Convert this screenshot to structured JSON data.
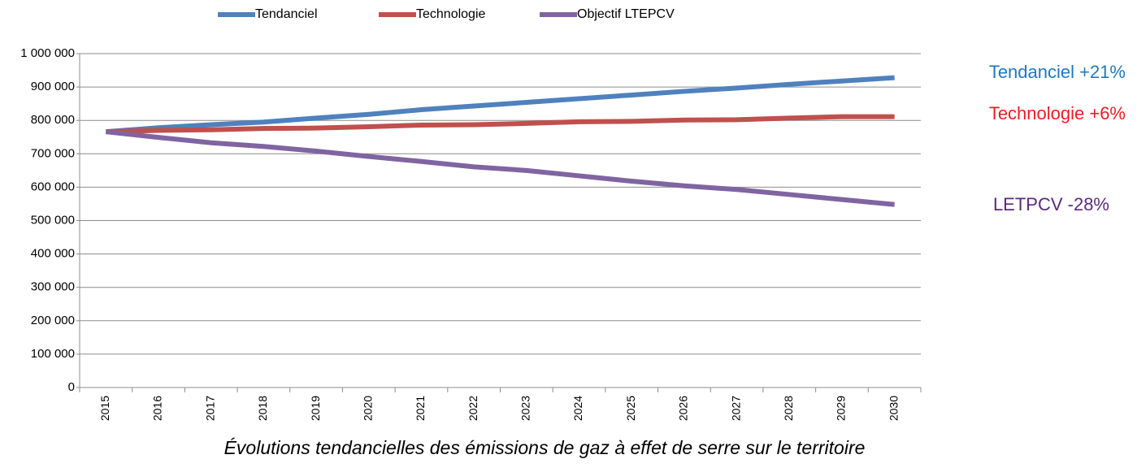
{
  "chart_data": {
    "type": "line",
    "title": "Évolutions tendancielles des émissions de gaz à effet de serre sur le territoire",
    "categories": [
      "2015",
      "2016",
      "2017",
      "2018",
      "2019",
      "2020",
      "2021",
      "2022",
      "2023",
      "2024",
      "2025",
      "2026",
      "2027",
      "2028",
      "2029",
      "2030"
    ],
    "series": [
      {
        "name": "Tendanciel",
        "color": "#4f81bd",
        "values": [
          766000,
          778000,
          787000,
          795000,
          807000,
          818000,
          832000,
          843000,
          854000,
          865000,
          876000,
          887000,
          897000,
          908000,
          918000,
          928000
        ]
      },
      {
        "name": "Technologie",
        "color": "#c0504d",
        "values": [
          766000,
          770000,
          772000,
          776000,
          777000,
          781000,
          786000,
          787000,
          791000,
          796000,
          797000,
          801000,
          802000,
          807000,
          811000,
          811000
        ]
      },
      {
        "name": "Objectif LTEPCV",
        "color": "#8064a2",
        "values": [
          766000,
          749000,
          733000,
          722000,
          708000,
          692000,
          677000,
          661000,
          650000,
          634000,
          618000,
          604000,
          593000,
          578000,
          563000,
          548000
        ]
      }
    ],
    "ylim": [
      0,
      1000000
    ],
    "yticks": [
      0,
      {
        "value": 100000,
        "label": "100 000"
      },
      {
        "value": 200000,
        "label": "200 000"
      },
      {
        "value": 300000,
        "label": "300 000"
      },
      {
        "value": 400000,
        "label": "400 000"
      },
      {
        "value": 500000,
        "label": "500 000"
      },
      {
        "value": 600000,
        "label": "600 000"
      },
      {
        "value": 700000,
        "label": "700 000"
      },
      {
        "value": 800000,
        "label": "800 000"
      },
      {
        "value": 900000,
        "label": "900 000"
      },
      {
        "value": 1000000,
        "label": "1 000 000"
      }
    ],
    "grid": true,
    "legend": "top",
    "annotations": [
      {
        "text": "Tendanciel +21%",
        "color": "#1f78c1"
      },
      {
        "text": "Technologie +6%",
        "color": "#ee1c25"
      },
      {
        "text": "LETPCV -28%",
        "color": "#5b2a7a"
      }
    ]
  }
}
